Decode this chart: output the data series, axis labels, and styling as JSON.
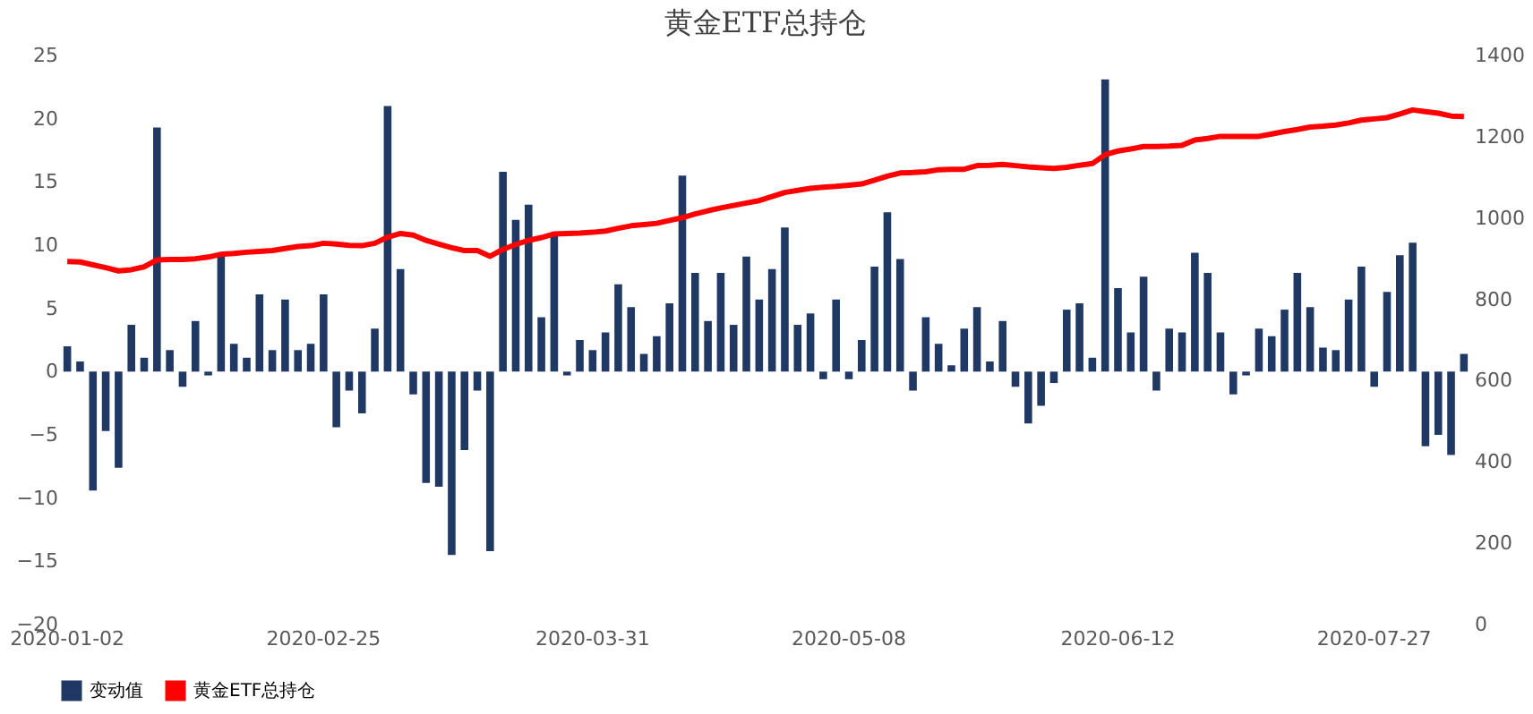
{
  "chart_data": {
    "type": "bar",
    "title": "黄金ETF总持仓",
    "categories": [
      "2020-01-02",
      null,
      null,
      null,
      null,
      null,
      null,
      null,
      null,
      null,
      null,
      null,
      null,
      null,
      null,
      null,
      null,
      null,
      null,
      null,
      "2020-02-25",
      null,
      null,
      null,
      null,
      null,
      null,
      null,
      null,
      null,
      null,
      null,
      null,
      null,
      null,
      null,
      null,
      null,
      null,
      null,
      null,
      "2020-03-31",
      null,
      null,
      null,
      null,
      null,
      null,
      null,
      null,
      null,
      null,
      null,
      null,
      null,
      null,
      null,
      null,
      null,
      null,
      null,
      "2020-05-08",
      null,
      null,
      null,
      null,
      null,
      null,
      null,
      null,
      null,
      null,
      null,
      null,
      null,
      null,
      null,
      null,
      null,
      null,
      null,
      null,
      "2020-06-12",
      null,
      null,
      null,
      null,
      null,
      null,
      null,
      null,
      null,
      null,
      null,
      null,
      null,
      null,
      null,
      null,
      null,
      null,
      null,
      "2020-07-27",
      null,
      null,
      null,
      null,
      null,
      null,
      null
    ],
    "series": [
      {
        "name": "变动值",
        "color": "#1f3864",
        "values": [
          2.0,
          0.8,
          -9.4,
          -4.7,
          -7.6,
          3.7,
          1.1,
          19.3,
          1.7,
          -1.2,
          4.0,
          -0.3,
          9.2,
          2.2,
          1.1,
          6.1,
          1.7,
          5.7,
          1.7,
          2.2,
          6.1,
          -4.4,
          -1.5,
          -3.3,
          3.4,
          21.0,
          8.1,
          -1.8,
          -8.8,
          -9.1,
          -14.5,
          -6.2,
          -1.5,
          -14.2,
          15.8,
          12.0,
          13.2,
          4.3,
          10.8,
          -0.3,
          2.5,
          1.7,
          3.1,
          6.9,
          5.1,
          1.4,
          2.8,
          5.4,
          15.5,
          7.8,
          4.0,
          7.8,
          3.7,
          9.1,
          5.7,
          8.1,
          11.4,
          3.7,
          4.6,
          -0.6,
          5.7,
          -0.6,
          2.5,
          8.3,
          12.6,
          8.9,
          -1.5,
          4.3,
          2.2,
          0.5,
          3.4,
          5.1,
          0.8,
          4.0,
          -1.2,
          -4.1,
          -2.7,
          -0.9,
          4.9,
          5.4,
          1.1,
          23.1,
          6.6,
          3.1,
          7.5,
          -1.5,
          3.4,
          3.1,
          9.4,
          7.8,
          3.1,
          -1.8,
          -0.3,
          3.4,
          2.8,
          4.9,
          7.8,
          5.1,
          1.9,
          1.7,
          5.7,
          8.3,
          -1.2,
          6.3,
          9.2,
          10.2,
          -5.9,
          -5.0,
          -6.6,
          1.4
        ]
      },
      {
        "name": "黄金ETF总持仓",
        "type": "line",
        "axis": "y2",
        "color": "#ff0000",
        "values": [
          893,
          892,
          885,
          878,
          870,
          873,
          880,
          897,
          898,
          898,
          900,
          904,
          911,
          913,
          916,
          918,
          920,
          925,
          930,
          932,
          938,
          936,
          933,
          932,
          938,
          953,
          962,
          958,
          945,
          936,
          927,
          920,
          920,
          906,
          923,
          935,
          945,
          952,
          961,
          962,
          963,
          965,
          968,
          975,
          981,
          984,
          987,
          994,
          1001,
          1010,
          1018,
          1025,
          1031,
          1037,
          1043,
          1053,
          1063,
          1068,
          1073,
          1076,
          1078,
          1081,
          1084,
          1093,
          1103,
          1111,
          1112,
          1114,
          1119,
          1120,
          1120,
          1129,
          1130,
          1132,
          1129,
          1126,
          1124,
          1122,
          1125,
          1130,
          1134,
          1156,
          1165,
          1170,
          1176,
          1176,
          1177,
          1179,
          1192,
          1196,
          1201,
          1201,
          1201,
          1201,
          1207,
          1213,
          1218,
          1224,
          1226,
          1229,
          1234,
          1241,
          1244,
          1247,
          1256,
          1266,
          1262,
          1258,
          1251,
          1250
        ]
      }
    ],
    "ylim": [
      -20,
      25
    ],
    "yticks": [
      -20,
      -15,
      -10,
      -5,
      0,
      5,
      10,
      15,
      20,
      25
    ],
    "y2lim": [
      0,
      1400
    ],
    "y2ticks": [
      0,
      200,
      400,
      600,
      800,
      1000,
      1200,
      1400
    ],
    "grid": false,
    "legend": "bottom"
  }
}
